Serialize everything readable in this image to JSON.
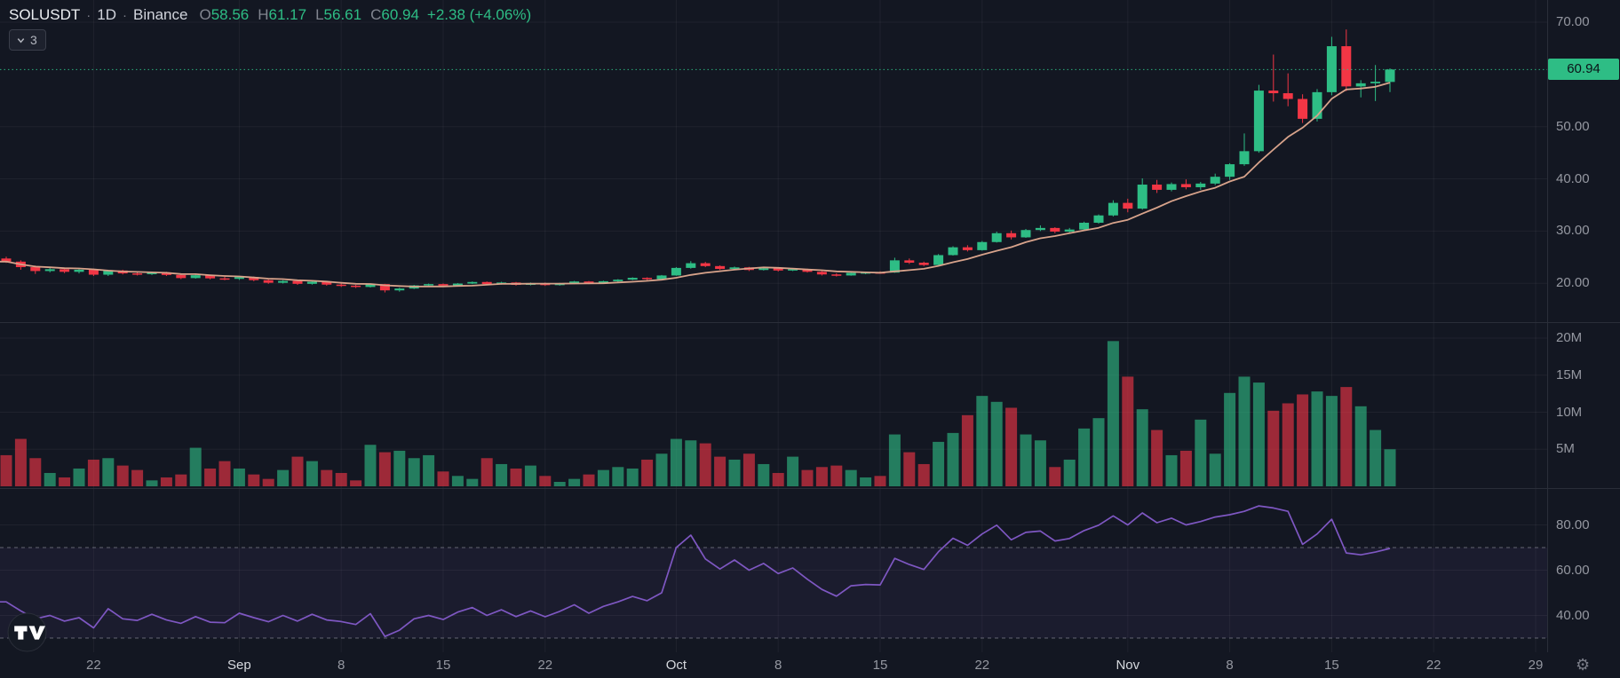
{
  "header": {
    "symbol": "SOLUSDT",
    "separator": "·",
    "timeframe": "1D",
    "exchange": "Binance",
    "ohlc": {
      "o_label": "O",
      "o": "58.56",
      "h_label": "H",
      "h": "61.17",
      "l_label": "L",
      "l": "56.61",
      "c_label": "C",
      "c": "60.94"
    },
    "change": "+2.38 (+4.06%)"
  },
  "legend": {
    "indicator_count": "3"
  },
  "price_axis": {
    "tick_labels": [
      "70.00",
      "50.00",
      "40.00",
      "30.00",
      "20.00"
    ],
    "tick_values": [
      70,
      50,
      40,
      30,
      20
    ],
    "last_price": 60.94,
    "last_price_label": "60.94"
  },
  "volume_axis": {
    "tick_labels": [
      "20M",
      "15M",
      "10M",
      "5M"
    ],
    "tick_values": [
      20,
      15,
      10,
      5
    ]
  },
  "rsi_axis": {
    "tick_labels": [
      "80.00",
      "60.00",
      "40.00"
    ],
    "tick_values": [
      80,
      60,
      40
    ],
    "overbought_level": 70,
    "oversold_level": 30
  },
  "time_axis": {
    "ticks": [
      {
        "label": "22",
        "i": 6,
        "month": false
      },
      {
        "label": "Sep",
        "i": 16,
        "month": true
      },
      {
        "label": "8",
        "i": 23,
        "month": false
      },
      {
        "label": "15",
        "i": 30,
        "month": false
      },
      {
        "label": "22",
        "i": 37,
        "month": false
      },
      {
        "label": "Oct",
        "i": 46,
        "month": true
      },
      {
        "label": "8",
        "i": 53,
        "month": false
      },
      {
        "label": "15",
        "i": 60,
        "month": false
      },
      {
        "label": "22",
        "i": 67,
        "month": false
      },
      {
        "label": "Nov",
        "i": 77,
        "month": true
      },
      {
        "label": "8",
        "i": 84,
        "month": false
      },
      {
        "label": "15",
        "i": 91,
        "month": false
      },
      {
        "label": "22",
        "i": 98,
        "month": false
      },
      {
        "label": "29",
        "i": 105,
        "month": false
      }
    ]
  },
  "chart_data": {
    "type": "candlestick",
    "title": "SOLUSDT 1D Binance",
    "panes": [
      "price-with-ma",
      "volume",
      "rsi"
    ],
    "ma_period": 7,
    "price_axis_range_hint": [
      12.5,
      74.2
    ],
    "volume_axis_range_hint": [
      0,
      22
    ],
    "rsi_axis_range_hint": [
      24,
      104
    ],
    "legend_position": "none",
    "grid": true,
    "candles_ohlc_vol_rsi": [
      [
        24.75,
        25.1,
        23.9,
        24.15,
        4.2,
        46.0
      ],
      [
        24.15,
        24.4,
        22.6,
        23.1,
        6.4,
        42.0
      ],
      [
        23.1,
        23.4,
        21.8,
        22.35,
        3.8,
        38.5
      ],
      [
        22.35,
        23.0,
        22.1,
        22.7,
        1.8,
        40.0
      ],
      [
        22.7,
        22.9,
        21.95,
        22.2,
        1.2,
        37.5
      ],
      [
        22.2,
        22.75,
        21.9,
        22.6,
        2.4,
        39.0
      ],
      [
        22.6,
        22.8,
        21.4,
        21.65,
        3.6,
        34.5
      ],
      [
        21.65,
        22.6,
        21.4,
        22.45,
        3.8,
        43.0
      ],
      [
        22.45,
        22.6,
        21.7,
        21.9,
        2.8,
        38.5
      ],
      [
        21.9,
        22.1,
        21.5,
        21.75,
        2.2,
        37.8
      ],
      [
        21.75,
        22.25,
        21.6,
        22.1,
        0.8,
        40.5
      ],
      [
        22.1,
        22.2,
        21.4,
        21.6,
        1.2,
        38.0
      ],
      [
        21.6,
        21.75,
        20.8,
        21.0,
        1.6,
        36.5
      ],
      [
        21.0,
        21.7,
        20.9,
        21.55,
        5.2,
        39.5
      ],
      [
        21.55,
        21.65,
        20.75,
        20.95,
        2.4,
        37.0
      ],
      [
        20.95,
        21.25,
        20.6,
        20.85,
        3.4,
        36.8
      ],
      [
        20.85,
        21.35,
        20.65,
        21.2,
        2.4,
        41.0
      ],
      [
        21.2,
        21.3,
        20.4,
        20.6,
        1.6,
        39.0
      ],
      [
        20.6,
        20.75,
        19.9,
        20.1,
        1.0,
        37.2
      ],
      [
        20.1,
        20.6,
        19.95,
        20.45,
        2.2,
        40.0
      ],
      [
        20.45,
        20.55,
        19.7,
        19.9,
        4.0,
        37.5
      ],
      [
        19.9,
        20.45,
        19.75,
        20.3,
        3.4,
        40.5
      ],
      [
        20.3,
        20.4,
        19.55,
        19.75,
        2.2,
        38.0
      ],
      [
        19.75,
        19.95,
        19.3,
        19.55,
        1.8,
        37.3
      ],
      [
        19.55,
        19.7,
        19.1,
        19.3,
        0.8,
        36.0
      ],
      [
        19.3,
        19.95,
        19.2,
        19.85,
        5.6,
        40.8
      ],
      [
        19.85,
        19.9,
        18.25,
        18.65,
        4.6,
        30.7
      ],
      [
        18.65,
        19.15,
        18.4,
        19.0,
        4.8,
        33.5
      ],
      [
        19.0,
        19.7,
        18.9,
        19.6,
        3.8,
        38.5
      ],
      [
        19.6,
        19.95,
        19.45,
        19.85,
        4.2,
        40.0
      ],
      [
        19.85,
        19.95,
        19.4,
        19.55,
        2.0,
        38.2
      ],
      [
        19.55,
        20.05,
        19.45,
        19.95,
        1.4,
        41.5
      ],
      [
        19.95,
        20.35,
        19.85,
        20.25,
        1.0,
        43.5
      ],
      [
        20.25,
        20.35,
        19.7,
        19.85,
        3.8,
        40.0
      ],
      [
        19.85,
        20.3,
        19.75,
        20.15,
        3.0,
        42.5
      ],
      [
        20.15,
        20.25,
        19.55,
        19.7,
        2.4,
        39.5
      ],
      [
        19.7,
        20.15,
        19.6,
        20.05,
        2.8,
        42.0
      ],
      [
        20.05,
        20.15,
        19.5,
        19.65,
        1.4,
        39.4
      ],
      [
        19.65,
        20.1,
        19.55,
        19.95,
        0.6,
        41.8
      ],
      [
        19.95,
        20.45,
        19.85,
        20.35,
        1.0,
        44.7
      ],
      [
        20.35,
        20.45,
        19.85,
        20.0,
        1.6,
        41.0
      ],
      [
        20.0,
        20.5,
        19.9,
        20.4,
        2.2,
        44.0
      ],
      [
        20.4,
        20.8,
        20.3,
        20.7,
        2.6,
        46.0
      ],
      [
        20.7,
        21.15,
        20.6,
        21.05,
        2.4,
        48.4
      ],
      [
        21.05,
        21.15,
        20.6,
        20.8,
        3.6,
        46.5
      ],
      [
        20.8,
        21.6,
        20.7,
        21.5,
        4.4,
        50.0
      ],
      [
        21.5,
        23.1,
        21.45,
        22.95,
        6.4,
        70.0
      ],
      [
        22.95,
        24.25,
        22.8,
        23.85,
        6.2,
        75.5
      ],
      [
        23.85,
        24.1,
        23.1,
        23.3,
        5.8,
        65.0
      ],
      [
        23.3,
        23.45,
        22.55,
        22.75,
        4.0,
        60.5
      ],
      [
        22.75,
        23.2,
        22.6,
        23.05,
        3.6,
        64.5
      ],
      [
        23.05,
        23.15,
        22.35,
        22.55,
        4.4,
        60.0
      ],
      [
        22.55,
        22.95,
        22.45,
        22.85,
        3.0,
        63.0
      ],
      [
        22.85,
        22.95,
        22.25,
        22.45,
        1.8,
        58.5
      ],
      [
        22.45,
        22.85,
        22.35,
        22.7,
        4.0,
        61.0
      ],
      [
        22.7,
        22.8,
        22.05,
        22.2,
        2.2,
        56.0
      ],
      [
        22.2,
        22.35,
        21.5,
        21.7,
        2.6,
        51.5
      ],
      [
        21.7,
        21.9,
        21.3,
        21.5,
        2.8,
        48.5
      ],
      [
        21.5,
        22.1,
        21.45,
        22.0,
        2.2,
        53.1
      ],
      [
        22.0,
        22.2,
        21.75,
        22.1,
        1.2,
        53.7
      ],
      [
        22.1,
        22.3,
        21.85,
        22.05,
        1.4,
        53.5
      ],
      [
        22.05,
        24.9,
        22.0,
        24.4,
        7.0,
        65.2
      ],
      [
        24.4,
        24.75,
        23.7,
        23.95,
        4.6,
        62.5
      ],
      [
        23.95,
        24.15,
        23.3,
        23.5,
        3.0,
        60.3
      ],
      [
        23.5,
        25.6,
        23.45,
        25.4,
        6.0,
        68.1
      ],
      [
        25.4,
        27.1,
        25.3,
        26.9,
        7.2,
        74.1
      ],
      [
        26.9,
        27.3,
        26.1,
        26.35,
        9.6,
        71.0
      ],
      [
        26.35,
        28.1,
        26.25,
        27.9,
        12.2,
        76.0
      ],
      [
        27.9,
        29.9,
        27.8,
        29.6,
        11.4,
        79.9
      ],
      [
        29.6,
        30.1,
        28.4,
        28.8,
        10.6,
        73.4
      ],
      [
        28.8,
        30.4,
        28.7,
        30.2,
        7.0,
        76.7
      ],
      [
        30.2,
        31.1,
        30.0,
        30.6,
        6.2,
        77.3
      ],
      [
        30.6,
        30.75,
        29.6,
        29.9,
        2.6,
        72.9
      ],
      [
        29.9,
        30.6,
        29.7,
        30.3,
        3.6,
        74.0
      ],
      [
        30.3,
        31.8,
        30.2,
        31.6,
        7.8,
        77.5
      ],
      [
        31.6,
        33.2,
        31.4,
        33.0,
        9.2,
        79.9
      ],
      [
        33.0,
        35.9,
        32.8,
        35.4,
        19.6,
        84.0
      ],
      [
        35.4,
        36.2,
        33.6,
        34.3,
        14.8,
        80.0
      ],
      [
        34.3,
        40.1,
        34.1,
        38.9,
        10.4,
        85.3
      ],
      [
        38.9,
        39.8,
        37.3,
        37.9,
        7.6,
        81.0
      ],
      [
        37.9,
        39.3,
        37.6,
        39.0,
        4.2,
        83.0
      ],
      [
        39.0,
        39.9,
        38.0,
        38.4,
        4.8,
        80.0
      ],
      [
        38.4,
        39.4,
        37.9,
        39.1,
        9.0,
        81.5
      ],
      [
        39.1,
        41.0,
        38.8,
        40.4,
        4.4,
        83.5
      ],
      [
        40.4,
        43.0,
        39.8,
        42.8,
        12.6,
        84.5
      ],
      [
        42.8,
        48.7,
        42.5,
        45.3,
        14.8,
        86.0
      ],
      [
        45.3,
        58.0,
        45.0,
        56.9,
        14.0,
        88.4
      ],
      [
        56.9,
        63.8,
        54.8,
        56.4,
        10.2,
        87.5
      ],
      [
        56.4,
        60.2,
        53.9,
        55.3,
        11.2,
        86.0
      ],
      [
        55.3,
        56.2,
        50.7,
        51.5,
        12.4,
        71.4
      ],
      [
        51.5,
        57.2,
        51.0,
        56.6,
        12.8,
        76.0
      ],
      [
        56.6,
        67.2,
        56.0,
        65.4,
        12.2,
        82.5
      ],
      [
        65.4,
        68.6,
        56.8,
        57.7,
        13.4,
        67.6
      ],
      [
        57.7,
        58.9,
        55.6,
        58.3,
        10.8,
        66.8
      ],
      [
        58.3,
        61.8,
        54.9,
        58.6,
        7.6,
        68.0
      ],
      [
        58.56,
        61.17,
        56.61,
        60.94,
        5.0,
        69.6
      ]
    ]
  },
  "colors": {
    "up": "#2ebd85",
    "down": "#f23645",
    "ma_line": "#d8a38b",
    "rsi_line": "#7e57c2",
    "rsi_band_fill": "rgba(126,87,194,0.08)",
    "background": "#131722",
    "grid": "rgba(255,255,255,0.05)",
    "axis_text": "#9598a1",
    "pane_separator": "#2a2e39",
    "dashed_level": "rgba(190,193,203,0.45)",
    "price_line": "#2ebd85",
    "badge_text": "#0b1217"
  },
  "footer": {
    "logo": "TradingView",
    "gear": "⚙"
  }
}
